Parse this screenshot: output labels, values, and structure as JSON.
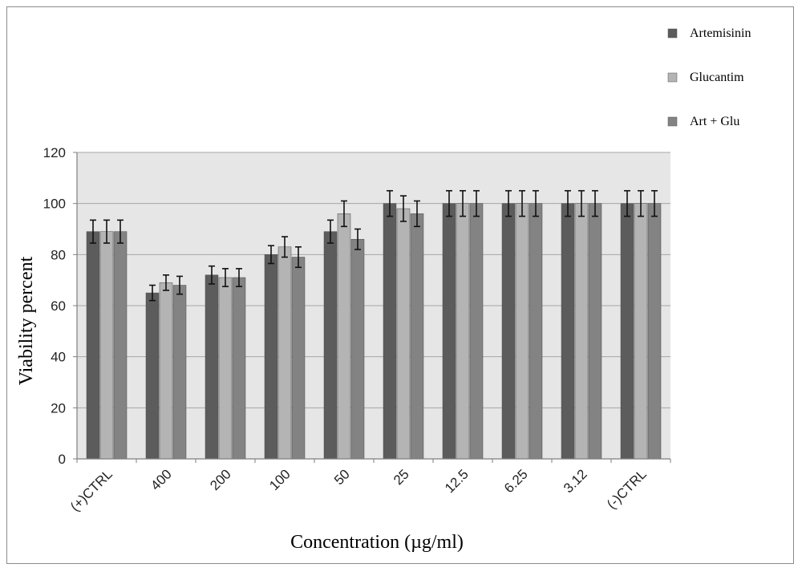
{
  "chart_data": {
    "type": "bar",
    "title": "",
    "xlabel": "Concentration (µg/ml)",
    "ylabel": "Viability percent",
    "ylim": [
      0,
      120
    ],
    "yticks": [
      0,
      20,
      40,
      60,
      80,
      100,
      120
    ],
    "grid": true,
    "legend_position": "top-right",
    "categories": [
      "(+)CTRL",
      "400",
      "200",
      "100",
      "50",
      "25",
      "12.5",
      "6.25",
      "3.12",
      "(-)CTRL"
    ],
    "series": [
      {
        "name": "Artemisinin",
        "color": "#5c5c5c",
        "values": [
          89,
          65,
          72,
          80,
          89,
          100,
          100,
          100,
          100,
          100
        ],
        "errors": [
          4.5,
          3,
          3.5,
          3.5,
          4.5,
          5,
          5,
          5,
          5,
          5
        ]
      },
      {
        "name": "Glucantim",
        "color": "#b4b4b4",
        "values": [
          89,
          69,
          71,
          83,
          96,
          98,
          100,
          100,
          100,
          100
        ],
        "errors": [
          4.5,
          3,
          3.5,
          4,
          5,
          5,
          5,
          5,
          5,
          5
        ]
      },
      {
        "name": "Art + Glu",
        "color": "#838383",
        "values": [
          89,
          68,
          71,
          79,
          86,
          96,
          100,
          100,
          100,
          100
        ],
        "errors": [
          4.5,
          3.5,
          3.5,
          4,
          4,
          5,
          5,
          5,
          5,
          5
        ]
      }
    ]
  }
}
